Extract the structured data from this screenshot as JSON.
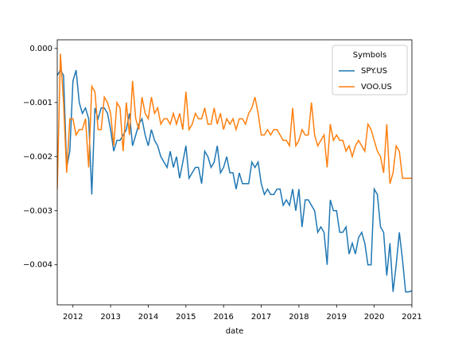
{
  "chart_data": {
    "type": "line",
    "xlabel": "date",
    "legend_title": "Symbols",
    "legend": "upper right",
    "xlim": [
      2011.583,
      2021.0
    ],
    "ylim": [
      0.00016,
      -0.00474
    ],
    "xticks": [
      2012,
      2013,
      2014,
      2015,
      2016,
      2017,
      2018,
      2019,
      2020,
      2021
    ],
    "yticks": [
      {
        "value": 0.0,
        "label": "0.000"
      },
      {
        "value": -0.001,
        "label": "−0.001"
      },
      {
        "value": -0.002,
        "label": "−0.002"
      },
      {
        "value": -0.003,
        "label": "−0.003"
      },
      {
        "value": -0.004,
        "label": "−0.004"
      }
    ],
    "x": [
      2011.583,
      2011.667,
      2011.75,
      2011.833,
      2011.917,
      2012,
      2012.083,
      2012.167,
      2012.25,
      2012.333,
      2012.417,
      2012.5,
      2012.583,
      2012.667,
      2012.75,
      2012.833,
      2012.917,
      2013,
      2013.083,
      2013.167,
      2013.25,
      2013.333,
      2013.417,
      2013.5,
      2013.583,
      2013.667,
      2013.75,
      2013.833,
      2013.917,
      2014,
      2014.083,
      2014.167,
      2014.25,
      2014.333,
      2014.417,
      2014.5,
      2014.583,
      2014.667,
      2014.75,
      2014.833,
      2014.917,
      2015,
      2015.083,
      2015.167,
      2015.25,
      2015.333,
      2015.417,
      2015.5,
      2015.583,
      2015.667,
      2015.75,
      2015.833,
      2015.917,
      2016,
      2016.083,
      2016.167,
      2016.25,
      2016.333,
      2016.417,
      2016.5,
      2016.583,
      2016.667,
      2016.75,
      2016.833,
      2016.917,
      2017,
      2017.083,
      2017.167,
      2017.25,
      2017.333,
      2017.417,
      2017.5,
      2017.583,
      2017.667,
      2017.75,
      2017.833,
      2017.917,
      2018,
      2018.083,
      2018.167,
      2018.25,
      2018.333,
      2018.417,
      2018.5,
      2018.583,
      2018.667,
      2018.75,
      2018.833,
      2018.917,
      2019,
      2019.083,
      2019.167,
      2019.25,
      2019.333,
      2019.417,
      2019.5,
      2019.583,
      2019.667,
      2019.75,
      2019.833,
      2019.917,
      2020,
      2020.083,
      2020.167,
      2020.25,
      2020.333,
      2020.417,
      2020.5,
      2020.583,
      2020.667,
      2020.75,
      2020.833,
      2020.917,
      2021
    ],
    "series": [
      {
        "name": "SPY.US",
        "color": "#1f77b4",
        "values": [
          -0.0005,
          -0.0004,
          -0.0005,
          -0.0022,
          -0.0019,
          -0.0006,
          -0.0004,
          -0.001,
          -0.0012,
          -0.0011,
          -0.0013,
          -0.0027,
          -0.0011,
          -0.0013,
          -0.0011,
          -0.0011,
          -0.0012,
          -0.0015,
          -0.0019,
          -0.0017,
          -0.0017,
          -0.0016,
          -0.0015,
          -0.0012,
          -0.0018,
          -0.0016,
          -0.0014,
          -0.0013,
          -0.0016,
          -0.0018,
          -0.0015,
          -0.0017,
          -0.0018,
          -0.002,
          -0.0021,
          -0.0022,
          -0.0019,
          -0.0022,
          -0.002,
          -0.0024,
          -0.0021,
          -0.0018,
          -0.0024,
          -0.0023,
          -0.0022,
          -0.0022,
          -0.0025,
          -0.0019,
          -0.002,
          -0.0022,
          -0.0021,
          -0.0018,
          -0.0023,
          -0.0022,
          -0.002,
          -0.0023,
          -0.0023,
          -0.0026,
          -0.0023,
          -0.0025,
          -0.0025,
          -0.0025,
          -0.0021,
          -0.0022,
          -0.0021,
          -0.0025,
          -0.0027,
          -0.0026,
          -0.0027,
          -0.0027,
          -0.0026,
          -0.0026,
          -0.0029,
          -0.0028,
          -0.0029,
          -0.0026,
          -0.003,
          -0.0026,
          -0.0033,
          -0.0028,
          -0.0028,
          -0.0029,
          -0.003,
          -0.0034,
          -0.0033,
          -0.0034,
          -0.004,
          -0.0028,
          -0.003,
          -0.003,
          -0.0034,
          -0.0034,
          -0.0033,
          -0.0038,
          -0.0036,
          -0.0038,
          -0.0035,
          -0.0034,
          -0.0036,
          -0.004,
          -0.004,
          -0.0026,
          -0.0027,
          -0.0033,
          -0.0034,
          -0.0042,
          -0.0036,
          -0.0045,
          -0.004,
          -0.0034,
          -0.0039,
          -0.0045,
          -0.0045,
          -0.00448
        ]
      },
      {
        "name": "VOO.US",
        "color": "#ff7f0e",
        "values": [
          -0.0026,
          -0.0001,
          -0.001,
          -0.0023,
          -0.0013,
          -0.0013,
          -0.0016,
          -0.0015,
          -0.0015,
          -0.0013,
          -0.0022,
          -0.0007,
          -0.0008,
          -0.0015,
          -0.0015,
          -0.0009,
          -0.001,
          -0.0012,
          -0.0018,
          -0.001,
          -0.0011,
          -0.0019,
          -0.001,
          -0.0016,
          -0.0006,
          -0.0013,
          -0.0015,
          -0.0009,
          -0.0012,
          -0.0013,
          -0.0009,
          -0.0012,
          -0.0011,
          -0.0014,
          -0.0013,
          -0.0013,
          -0.0014,
          -0.0012,
          -0.0014,
          -0.0012,
          -0.0015,
          -0.0008,
          -0.0015,
          -0.0014,
          -0.0012,
          -0.0013,
          -0.0013,
          -0.0011,
          -0.0014,
          -0.0014,
          -0.0011,
          -0.0014,
          -0.0012,
          -0.0015,
          -0.0013,
          -0.0014,
          -0.0013,
          -0.0015,
          -0.0013,
          -0.0013,
          -0.0014,
          -0.0012,
          -0.0011,
          -0.0009,
          -0.0012,
          -0.0016,
          -0.0016,
          -0.0015,
          -0.0016,
          -0.0015,
          -0.0015,
          -0.0016,
          -0.0017,
          -0.0017,
          -0.0018,
          -0.0011,
          -0.0018,
          -0.0017,
          -0.0015,
          -0.0016,
          -0.0016,
          -0.001,
          -0.0016,
          -0.0018,
          -0.0017,
          -0.0016,
          -0.0022,
          -0.0014,
          -0.0017,
          -0.0016,
          -0.0017,
          -0.0017,
          -0.0019,
          -0.0018,
          -0.002,
          -0.0018,
          -0.0017,
          -0.0018,
          -0.0019,
          -0.0014,
          -0.0015,
          -0.0017,
          -0.0019,
          -0.002,
          -0.0023,
          -0.0014,
          -0.0025,
          -0.0023,
          -0.0018,
          -0.0019,
          -0.0024,
          -0.0024,
          -0.0024,
          -0.0024
        ]
      }
    ]
  }
}
